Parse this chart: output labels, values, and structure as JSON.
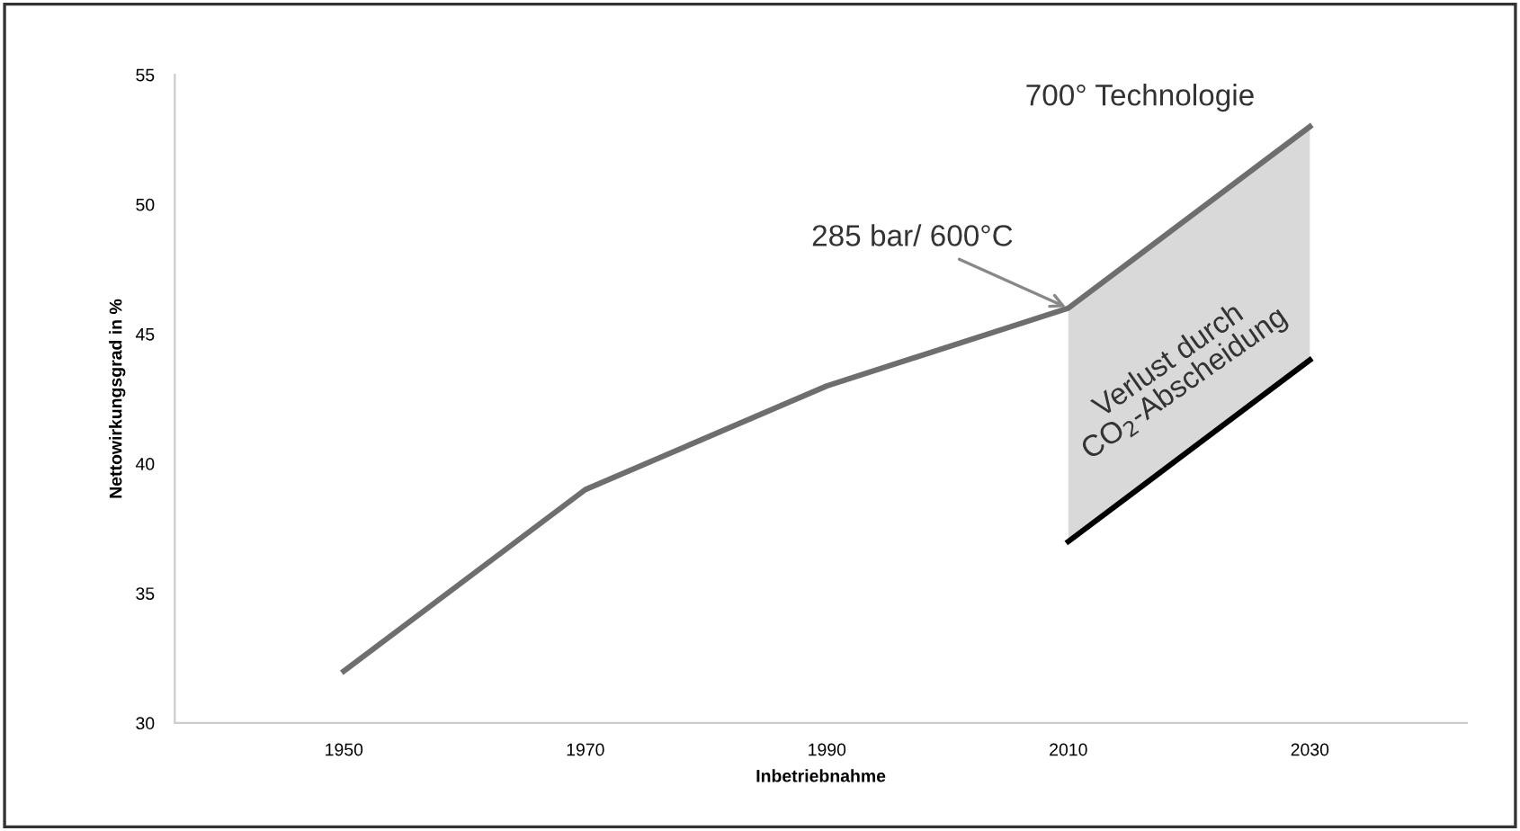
{
  "chart_data": {
    "type": "line",
    "xlabel": "Inbetriebnahme",
    "ylabel": "Nettowirkungsgrad in %",
    "categories": [
      "1950",
      "1970",
      "1990",
      "2010",
      "2030"
    ],
    "series": [
      {
        "color": "#6e6e6e",
        "values": [
          32,
          39,
          43,
          46,
          53
        ]
      },
      {
        "color": "#000000",
        "values": [
          null,
          null,
          null,
          37,
          44
        ],
        "lower": [
          null,
          null,
          null,
          37,
          44
        ],
        "upper": [
          null,
          null,
          null,
          46,
          53
        ]
      }
    ],
    "ylim": [
      30,
      55
    ],
    "yticks": [
      30,
      35,
      40,
      45,
      50,
      55
    ],
    "grid": false,
    "marker": "none",
    "line_style": "solid",
    "annotations": [
      {
        "text": "700° Technologie",
        "x": "2030",
        "y": 53
      },
      {
        "text": "285 bar/ 600°C",
        "x": "2010",
        "y": 46
      },
      {
        "text": "Verlust durch\nCO$_{2}$-Abscheidung",
        "x": "2010",
        "y": 46
      }
    ]
  }
}
